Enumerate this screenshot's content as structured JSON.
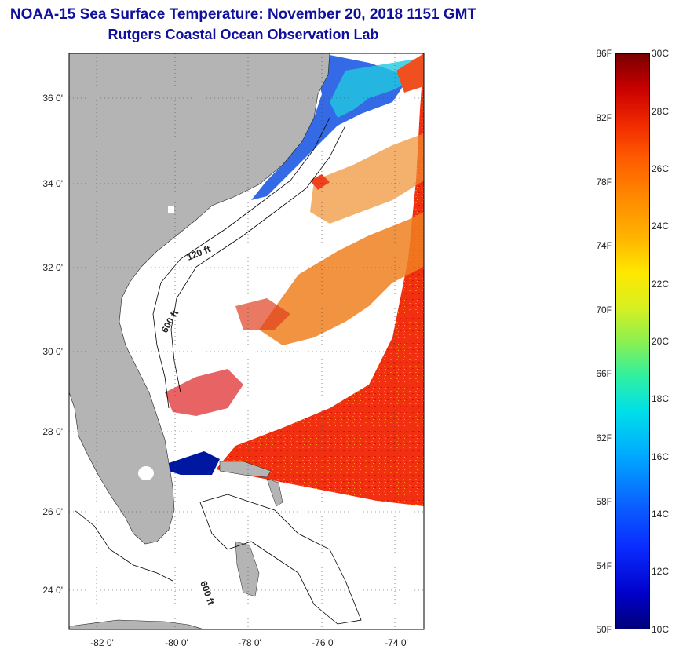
{
  "header": {
    "title": "NOAA-15 Sea Surface Temperature:  November 20, 2018 1151 GMT",
    "subtitle": "Rutgers Coastal Ocean Observation Lab"
  },
  "map": {
    "lat_labels": [
      "36 0'",
      "34 0'",
      "32 0'",
      "30 0'",
      "28 0'",
      "26 0'",
      "24 0'"
    ],
    "lon_labels": [
      "-82 0'",
      "-80 0'",
      "-78 0'",
      "-76 0'",
      "-74 0'"
    ],
    "contour_labels": [
      "120 ft",
      "600 ft",
      "600 ft"
    ],
    "colors": {
      "land": "#b4b4b4",
      "warm_sst": "#f03a10",
      "cool_sst": "#1038d8",
      "mid_sst": "#f07a20"
    }
  },
  "colorbar": {
    "fahrenheit": [
      "86F",
      "82F",
      "78F",
      "74F",
      "70F",
      "66F",
      "62F",
      "58F",
      "54F",
      "50F"
    ],
    "celsius": [
      "30C",
      "28C",
      "26C",
      "24C",
      "22C",
      "20C",
      "18C",
      "16C",
      "14C",
      "12C",
      "10C"
    ]
  }
}
